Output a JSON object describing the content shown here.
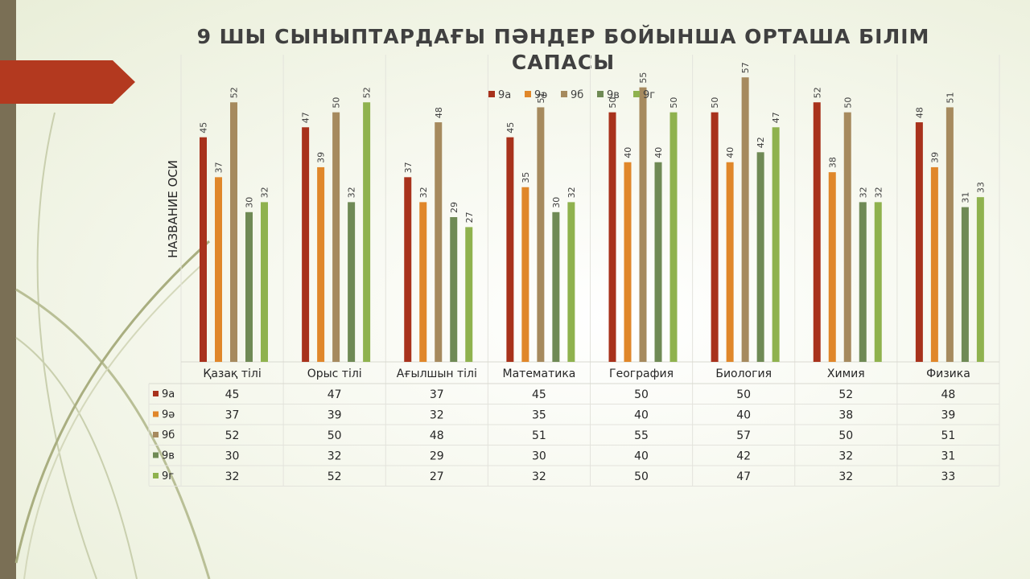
{
  "slide": {
    "title": "9 ШЫ СЫНЫПТАРДАҒЫ ПӘНДЕР БОЙЫНША ОРТАША БІЛІМ САПАСЫ"
  },
  "chart_data": {
    "type": "bar",
    "title": "9 ШЫ СЫНЫПТАРДАҒЫ ПӘНДЕР БОЙЫНША ОРТАША БІЛІМ САПАСЫ",
    "xlabel": "",
    "ylabel": "НАЗВАНИЕ ОСИ",
    "ylim": [
      0,
      58
    ],
    "grid": false,
    "legend": "top-center",
    "data_table": true,
    "categories": [
      "Қазақ тілі",
      "Орыс тілі",
      "Ағылшын тілі",
      "Математика",
      "География",
      "Биология",
      "Химия",
      "Физика"
    ],
    "series": [
      {
        "name": "9а",
        "color": "#a8321c",
        "values": [
          45,
          47,
          37,
          45,
          50,
          50,
          52,
          48
        ]
      },
      {
        "name": "9ә",
        "color": "#e0872a",
        "values": [
          37,
          39,
          32,
          35,
          40,
          40,
          38,
          39
        ]
      },
      {
        "name": "9б",
        "color": "#a68a5e",
        "values": [
          52,
          50,
          48,
          51,
          55,
          57,
          50,
          51
        ]
      },
      {
        "name": "9в",
        "color": "#6f8a55",
        "values": [
          30,
          32,
          29,
          30,
          40,
          42,
          32,
          31
        ]
      },
      {
        "name": "9г",
        "color": "#8fb24e",
        "values": [
          32,
          52,
          27,
          32,
          50,
          47,
          32,
          33
        ]
      }
    ]
  }
}
